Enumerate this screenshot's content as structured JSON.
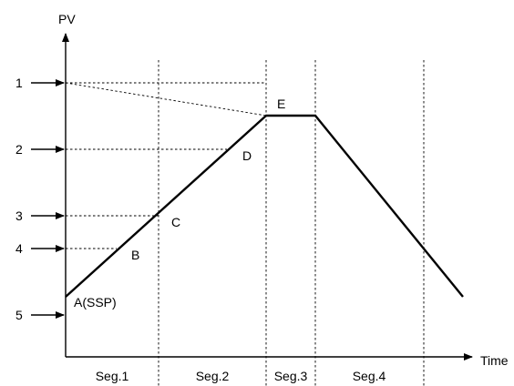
{
  "axes": {
    "y_label": "PV",
    "x_label": "Time"
  },
  "level_labels": [
    "1",
    "2",
    "3",
    "4",
    "5"
  ],
  "points": {
    "a": "A(SSP)",
    "b": "B",
    "c": "C",
    "d": "D",
    "e": "E"
  },
  "segments": [
    "Seg.1",
    "Seg.2",
    "Seg.3",
    "Seg.4"
  ]
}
